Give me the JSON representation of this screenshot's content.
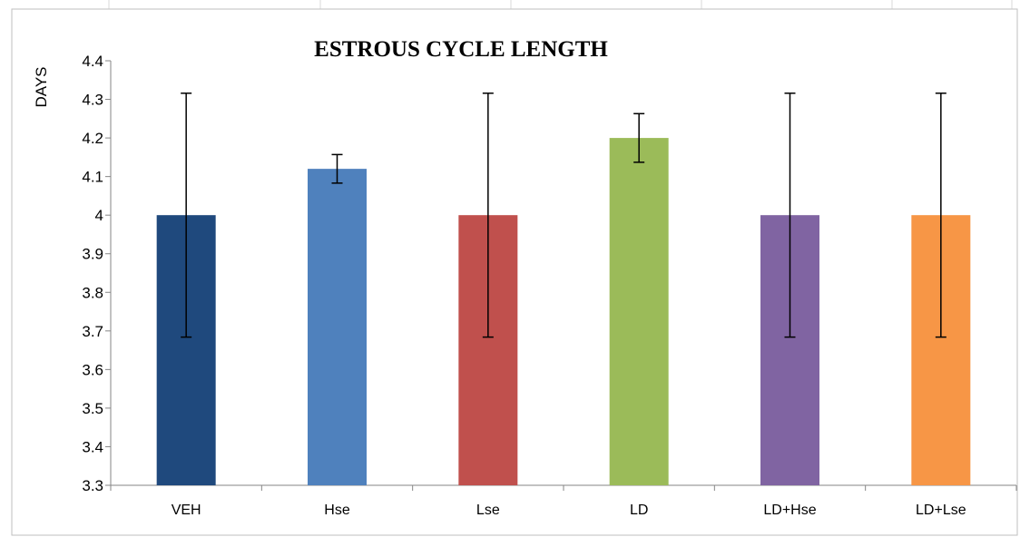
{
  "chart_data": {
    "type": "bar",
    "title": "ESTROUS CYCLE LENGTH",
    "xlabel": "",
    "ylabel": "DAYS",
    "ylim": [
      3.3,
      4.4
    ],
    "yticks": [
      "3.3",
      "3.4",
      "3.5",
      "3.6",
      "3.7",
      "3.8",
      "3.9",
      "4",
      "4.1",
      "4.2",
      "4.3",
      "4.4"
    ],
    "grid": false,
    "legend": "none",
    "categories": [
      "VEH",
      "Hse",
      "Lse",
      "LD",
      "LD+Hse",
      "LD+Lse"
    ],
    "values": [
      4.0,
      4.12,
      4.0,
      4.2,
      4.0,
      4.0
    ],
    "error": [
      0.316,
      0.037,
      0.316,
      0.063,
      0.316,
      0.316
    ],
    "colors": [
      "#1F497D",
      "#4F81BD",
      "#C0504D",
      "#9BBB59",
      "#8064A2",
      "#F79646"
    ]
  }
}
